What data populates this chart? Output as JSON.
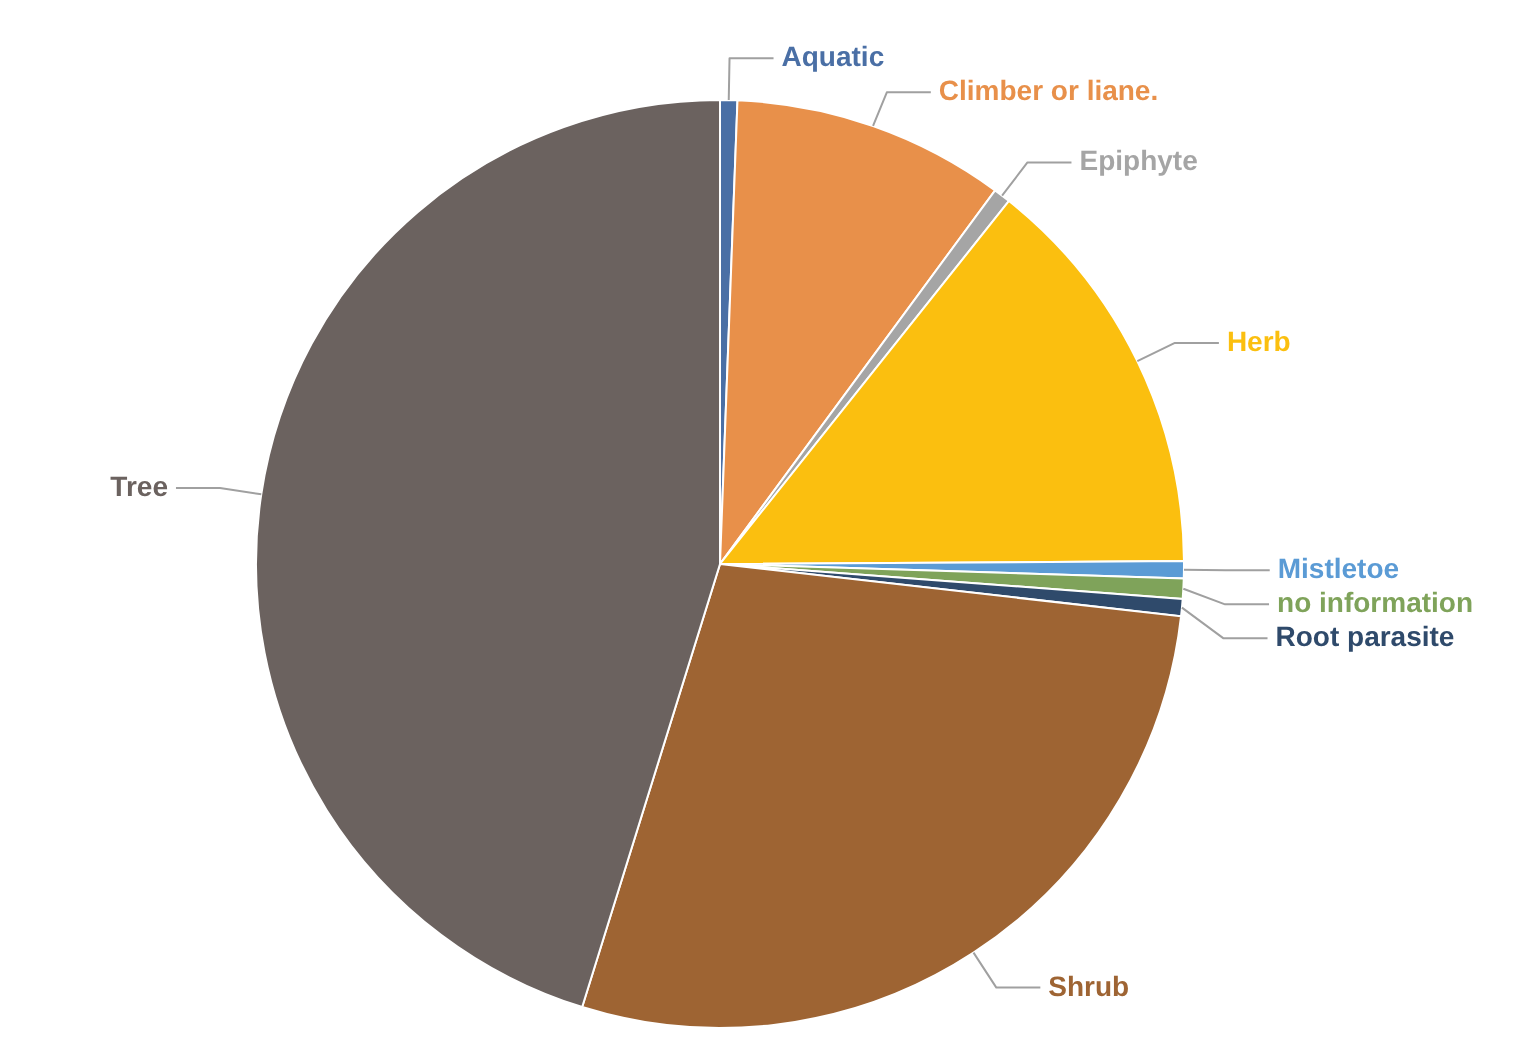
{
  "chart_data": {
    "type": "pie",
    "categories": [
      "Aquatic",
      "Climber or liane.",
      "Epiphyte",
      "Herb",
      "Mistletoe",
      "no information",
      "Root parasite",
      "Shrub",
      "Tree"
    ],
    "values": [
      0.6,
      9.5,
      0.6,
      14.2,
      0.6,
      0.7,
      0.6,
      28.0,
      45.2
    ],
    "colors": [
      "#4a6fa5",
      "#e8904a",
      "#a5a5a5",
      "#fbbf0f",
      "#5b9bd5",
      "#7fa35a",
      "#2f4a6b",
      "#9e6433",
      "#6b625f"
    ]
  }
}
